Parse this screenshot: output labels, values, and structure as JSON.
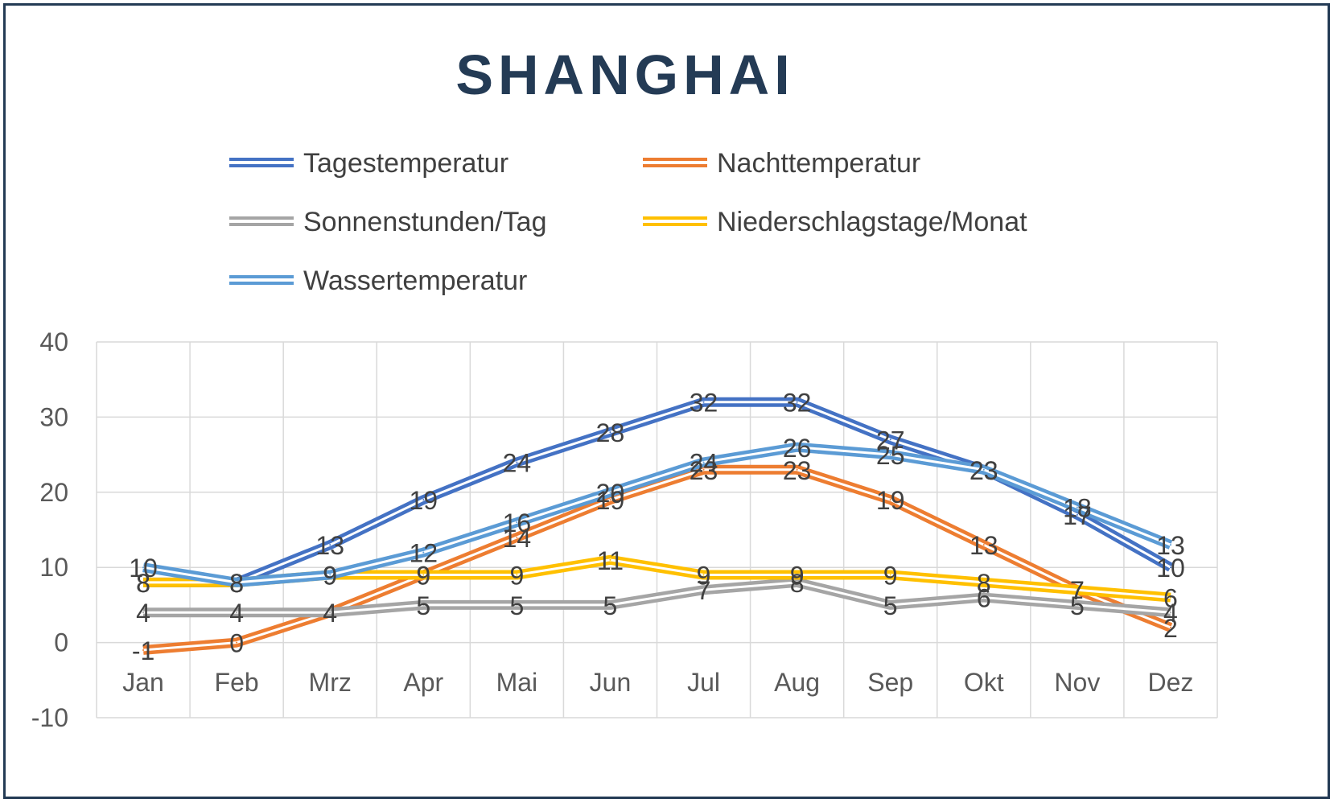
{
  "chart_data": {
    "type": "line",
    "title": "SHANGHAI",
    "categories": [
      "Jan",
      "Feb",
      "Mrz",
      "Apr",
      "Mai",
      "Jun",
      "Jul",
      "Aug",
      "Sep",
      "Okt",
      "Nov",
      "Dez"
    ],
    "ylim": [
      -10,
      40
    ],
    "yticks": [
      -10,
      0,
      10,
      20,
      30,
      40
    ],
    "grid": true,
    "legend": "top",
    "series": [
      {
        "name": "Tagestemperatur",
        "color": "#4472c4",
        "values": [
          8,
          8,
          13,
          19,
          24,
          28,
          32,
          32,
          27,
          23,
          17,
          10
        ]
      },
      {
        "name": "Nachttemperatur",
        "color": "#ed7d31",
        "values": [
          -1,
          0,
          4,
          9,
          14,
          19,
          23,
          23,
          19,
          13,
          7,
          2
        ]
      },
      {
        "name": "Sonnenstunden/Tag",
        "color": "#a5a5a5",
        "values": [
          4,
          4,
          4,
          5,
          5,
          5,
          7,
          8,
          5,
          6,
          5,
          4
        ]
      },
      {
        "name": "Niederschlagstage/Monat",
        "color": "#ffc000",
        "values": [
          8,
          8,
          9,
          9,
          9,
          11,
          9,
          9,
          9,
          8,
          7,
          6
        ]
      },
      {
        "name": "Wassertemperatur",
        "color": "#5b9bd5",
        "values": [
          10,
          8,
          9,
          12,
          16,
          20,
          24,
          26,
          25,
          23,
          18,
          13
        ]
      }
    ]
  }
}
